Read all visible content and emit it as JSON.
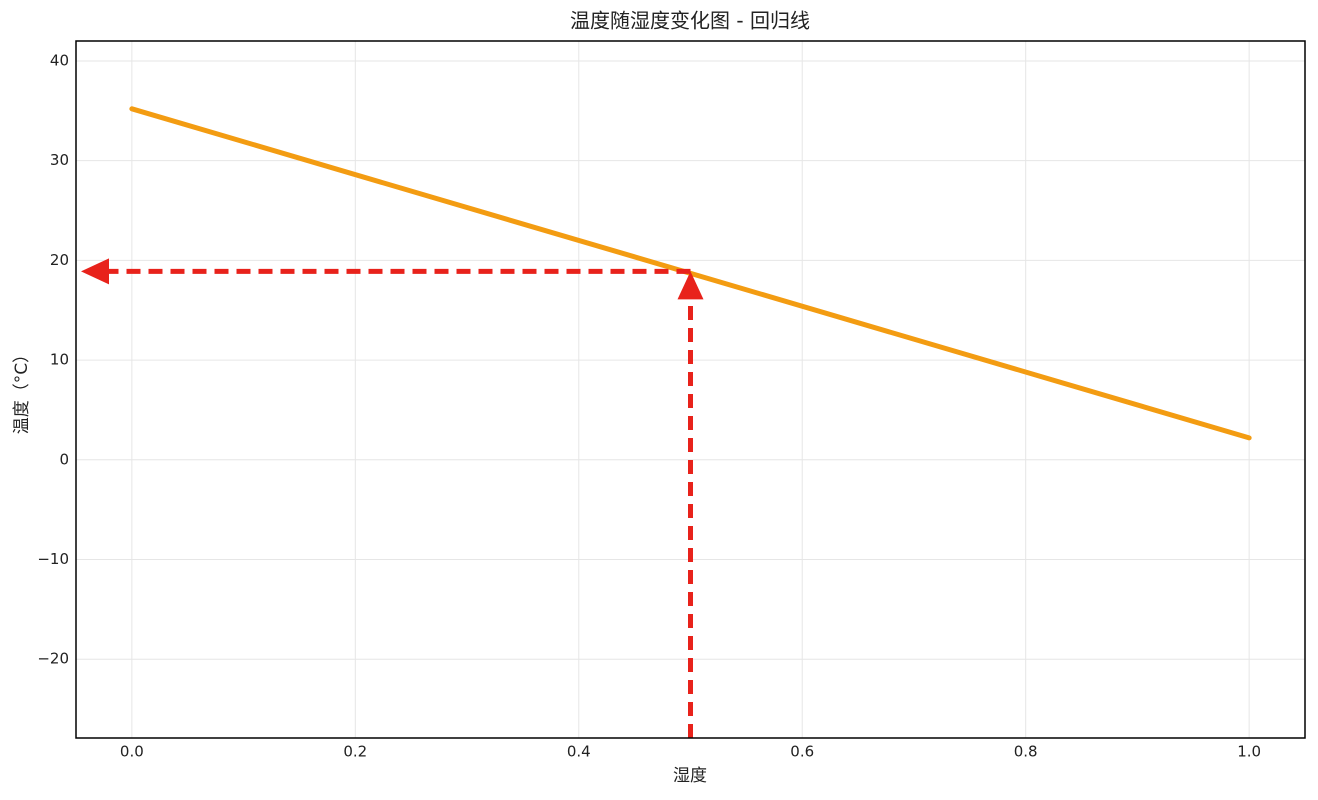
{
  "chart_data": {
    "type": "line",
    "title": "温度随湿度变化图 - 回归线",
    "x_label": "湿度",
    "y_label": "温度（°C）",
    "x": [
      0,
      1
    ],
    "series": [
      {
        "color": "#f39c12",
        "values": [
          35.2,
          2.2
        ]
      }
    ],
    "reference": {
      "x": 0.5,
      "y": 18.9,
      "color": "#e8221b"
    },
    "xlim": [
      -0.05,
      1.05
    ],
    "xticks": [
      {
        "value": 0,
        "label": "0.0"
      },
      {
        "value": 0.2,
        "label": "0.2"
      },
      {
        "value": 0.4,
        "label": "0.4"
      },
      {
        "value": 0.6,
        "label": "0.6"
      },
      {
        "value": 0.8,
        "label": "0.8"
      },
      {
        "value": 1,
        "label": "1.0"
      }
    ],
    "ylim": [
      -27.9,
      42
    ],
    "yticks": [
      {
        "value": -20,
        "label": "−20"
      },
      {
        "value": -10,
        "label": "−10"
      },
      0,
      10,
      20,
      30,
      40
    ],
    "grid": true
  }
}
